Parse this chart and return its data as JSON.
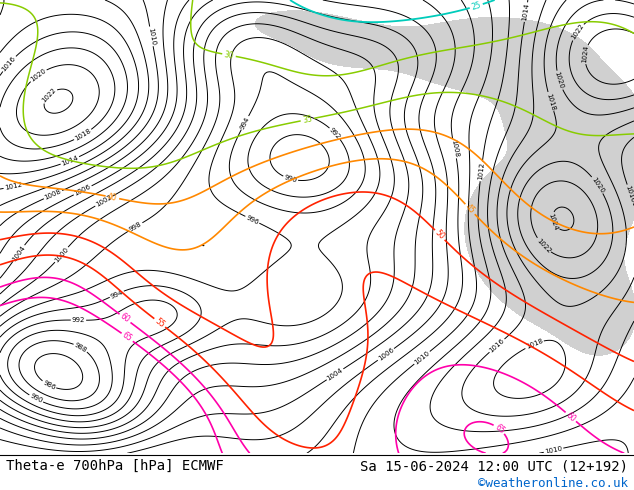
{
  "title_left": "Theta-e 700hPa [hPa] ECMWF",
  "title_right": "Sa 15-06-2024 12:00 UTC (12+192)",
  "credit": "©weatheronline.co.uk",
  "credit_color": "#0066cc",
  "bg_color": "#ffffff",
  "land_color": "#c8f0a0",
  "gray_color": "#aaaaaa",
  "label_fontsize": 10,
  "credit_fontsize": 9
}
